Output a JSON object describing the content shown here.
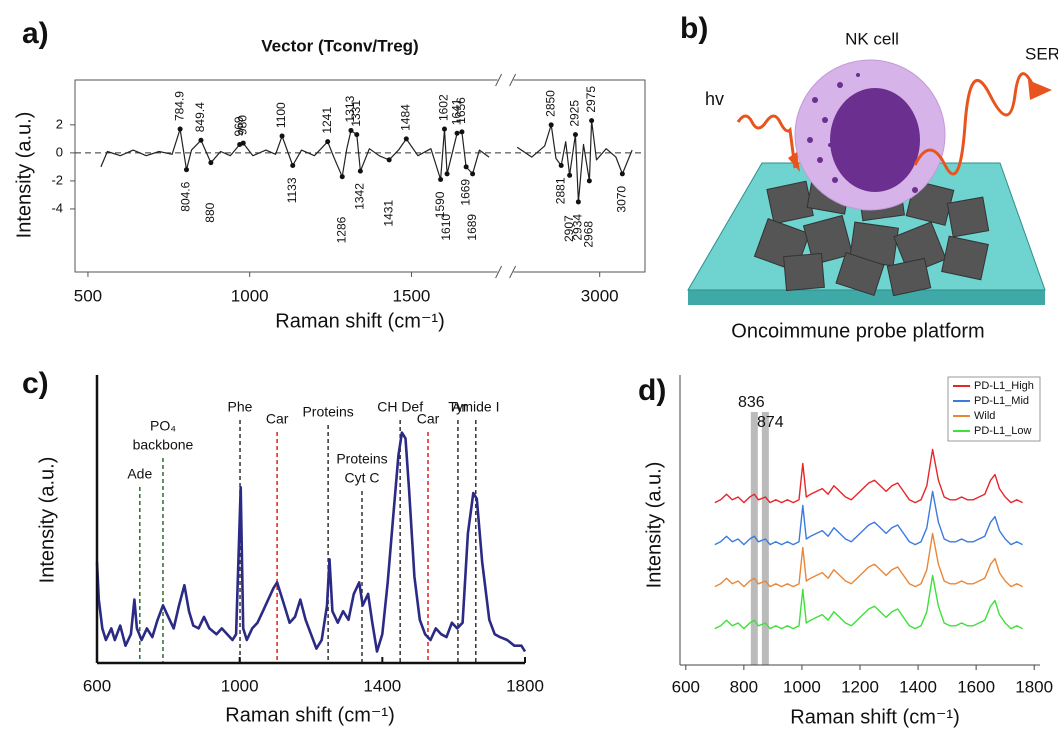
{
  "chart_data": [
    {
      "type": "line",
      "panel_label": "a)",
      "title": "Vector (Tconv/Treg)",
      "x_label": "Raman shift (cm⁻¹)",
      "y_label": "Intensity (a.u.)",
      "xlim": [
        460,
        3140
      ],
      "axis_break": [
        1760,
        2740
      ],
      "xticks": [
        500,
        1000,
        1500,
        3000
      ],
      "ylim": [
        -8.5,
        5.2
      ],
      "yticks": [
        -4,
        -2,
        0,
        2
      ],
      "reference_line": 0,
      "series": [
        {
          "color": "#222222",
          "x": [
            540,
            560,
            600,
            640,
            680,
            720,
            760,
            784.9,
            804.6,
            820,
            849.4,
            880,
            910,
            940,
            969,
            980,
            1010,
            1050,
            1080,
            1100,
            1133,
            1160,
            1200,
            1241,
            1260,
            1286,
            1300,
            1313,
            1331,
            1342,
            1370,
            1400,
            1431,
            1460,
            1484,
            1520,
            1560,
            1590,
            1602,
            1610,
            1641,
            1656,
            1669,
            1689,
            1710,
            1740,
            2000,
            2745,
            2790,
            2830,
            2850,
            2865,
            2881,
            2895,
            2907,
            2925,
            2934,
            2950,
            2968,
            2975,
            2990,
            3020,
            3050,
            3070,
            3100
          ],
          "values": [
            -1.0,
            0.1,
            -0.2,
            0.2,
            -0.2,
            0.1,
            -0.1,
            1.7,
            -1.2,
            0.2,
            0.9,
            -0.7,
            0.1,
            -0.2,
            0.6,
            0.7,
            -0.2,
            0.2,
            -0.1,
            1.2,
            -0.9,
            0.2,
            -0.2,
            0.8,
            -0.3,
            -1.7,
            0.3,
            1.6,
            1.3,
            -1.3,
            0.3,
            -0.2,
            -0.5,
            0.2,
            1.0,
            -0.2,
            0.3,
            -1.9,
            1.7,
            -1.5,
            1.4,
            1.5,
            -1.0,
            -1.5,
            0.2,
            -0.3,
            null,
            0.4,
            -0.3,
            0.5,
            2.0,
            -0.4,
            -0.9,
            0.8,
            -1.6,
            1.3,
            -3.5,
            0.6,
            -2.0,
            2.3,
            -0.5,
            0.3,
            -0.3,
            -1.5,
            0.2
          ]
        }
      ],
      "peak_labels_top": [
        784.9,
        849.4,
        969,
        980,
        1100,
        1241,
        1313,
        1331,
        1484,
        1602,
        1641,
        1656,
        2850,
        2925,
        2975
      ],
      "peak_labels_bottom": [
        804.6,
        880,
        1133,
        1286,
        1342,
        1431,
        1590,
        1610,
        1669,
        1689,
        2881,
        2907,
        2934,
        2968,
        3070
      ]
    },
    {
      "type": "line",
      "panel_label": "c)",
      "x_label": "Raman shift (cm⁻¹)",
      "y_label": "Intensity (a.u.)",
      "xlim": [
        600,
        1800
      ],
      "xticks": [
        600,
        1000,
        1400,
        1800
      ],
      "ylim": [
        0,
        1
      ],
      "series": [
        {
          "color": "#2b2a85",
          "x": [
            600,
            605,
            615,
            625,
            640,
            650,
            665,
            680,
            695,
            705,
            712,
            725,
            740,
            755,
            770,
            785,
            800,
            815,
            830,
            845,
            858,
            870,
            885,
            900,
            915,
            935,
            950,
            965,
            980,
            990,
            1003,
            1010,
            1020,
            1035,
            1050,
            1065,
            1080,
            1095,
            1105,
            1115,
            1125,
            1140,
            1155,
            1170,
            1185,
            1200,
            1215,
            1230,
            1245,
            1252,
            1260,
            1275,
            1290,
            1305,
            1320,
            1335,
            1345,
            1360,
            1372,
            1385,
            1400,
            1415,
            1430,
            1445,
            1455,
            1465,
            1475,
            1490,
            1505,
            1520,
            1535,
            1550,
            1565,
            1580,
            1595,
            1610,
            1625,
            1640,
            1655,
            1665,
            1680,
            1700,
            1715,
            1730,
            1750,
            1770,
            1790,
            1800
          ],
          "values": [
            0.35,
            0.22,
            0.12,
            0.08,
            0.12,
            0.08,
            0.13,
            0.06,
            0.1,
            0.22,
            0.12,
            0.08,
            0.12,
            0.09,
            0.15,
            0.2,
            0.16,
            0.12,
            0.2,
            0.27,
            0.18,
            0.13,
            0.12,
            0.16,
            0.12,
            0.1,
            0.12,
            0.1,
            0.08,
            0.1,
            0.61,
            0.12,
            0.08,
            0.12,
            0.14,
            0.18,
            0.22,
            0.26,
            0.28,
            0.24,
            0.2,
            0.14,
            0.16,
            0.22,
            0.15,
            0.1,
            0.05,
            0.08,
            0.2,
            0.36,
            0.18,
            0.14,
            0.18,
            0.15,
            0.24,
            0.28,
            0.2,
            0.24,
            0.14,
            0.04,
            0.1,
            0.28,
            0.5,
            0.72,
            0.8,
            0.78,
            0.6,
            0.3,
            0.15,
            0.1,
            0.08,
            0.12,
            0.1,
            0.09,
            0.14,
            0.12,
            0.14,
            0.45,
            0.59,
            0.57,
            0.35,
            0.15,
            0.1,
            0.09,
            0.08,
            0.06,
            0.06,
            0.04
          ]
        }
      ],
      "annotations": [
        {
          "x": 720,
          "text": [
            "Ade"
          ],
          "color": "#2e6b2e"
        },
        {
          "x": 785,
          "text": [
            "PO₄",
            "backbone"
          ],
          "color": "#2e6b2e"
        },
        {
          "x": 1001,
          "text": [
            "Phe"
          ],
          "color": "#333333"
        },
        {
          "x": 1105,
          "text": [
            "Car"
          ],
          "color": "#e02020"
        },
        {
          "x": 1248,
          "text": [
            "Proteins"
          ],
          "color": "#333333"
        },
        {
          "x": 1343,
          "text": [
            "Proteins",
            "Cyt C"
          ],
          "color": "#333333"
        },
        {
          "x": 1450,
          "text": [
            "CH Def"
          ],
          "color": "#333333"
        },
        {
          "x": 1528,
          "text": [
            "Car"
          ],
          "color": "#e02020"
        },
        {
          "x": 1612,
          "text": [
            "Tyr"
          ],
          "color": "#333333"
        },
        {
          "x": 1662,
          "text": [
            "Amide I"
          ],
          "color": "#333333"
        }
      ]
    },
    {
      "type": "line",
      "panel_label": "d)",
      "x_label": "Raman shift (cm⁻¹)",
      "y_label": "Intensity (a.u.)",
      "xlim": [
        580,
        1820
      ],
      "xticks": [
        600,
        800,
        1000,
        1200,
        1400,
        1600,
        1800
      ],
      "ylim": [
        0,
        1
      ],
      "legend": "top-right",
      "highlights": [
        836,
        874
      ],
      "x": [
        700,
        720,
        740,
        760,
        780,
        800,
        820,
        836,
        850,
        874,
        890,
        910,
        930,
        950,
        970,
        990,
        1003,
        1015,
        1030,
        1050,
        1070,
        1090,
        1110,
        1130,
        1150,
        1170,
        1190,
        1210,
        1230,
        1250,
        1270,
        1290,
        1310,
        1330,
        1350,
        1370,
        1390,
        1410,
        1430,
        1450,
        1470,
        1490,
        1510,
        1530,
        1550,
        1570,
        1590,
        1610,
        1630,
        1650,
        1665,
        1680,
        1700,
        1720,
        1740,
        1760
      ],
      "series": [
        {
          "name": "PD-L1_High",
          "color": "#e8262a",
          "values": [
            0.58,
            0.59,
            0.61,
            0.59,
            0.6,
            0.58,
            0.6,
            0.61,
            0.59,
            0.6,
            0.58,
            0.59,
            0.58,
            0.59,
            0.58,
            0.59,
            0.72,
            0.6,
            0.61,
            0.62,
            0.63,
            0.61,
            0.64,
            0.62,
            0.6,
            0.59,
            0.61,
            0.63,
            0.65,
            0.66,
            0.64,
            0.62,
            0.64,
            0.65,
            0.62,
            0.59,
            0.58,
            0.59,
            0.64,
            0.77,
            0.66,
            0.6,
            0.59,
            0.59,
            0.6,
            0.59,
            0.59,
            0.6,
            0.61,
            0.66,
            0.68,
            0.63,
            0.6,
            0.58,
            0.59,
            0.58
          ]
        },
        {
          "name": "PD-L1_Mid",
          "color": "#3b7be0",
          "values": [
            0.43,
            0.44,
            0.46,
            0.44,
            0.45,
            0.43,
            0.45,
            0.46,
            0.44,
            0.45,
            0.43,
            0.44,
            0.43,
            0.44,
            0.43,
            0.44,
            0.57,
            0.45,
            0.46,
            0.47,
            0.48,
            0.46,
            0.49,
            0.47,
            0.45,
            0.44,
            0.46,
            0.48,
            0.5,
            0.51,
            0.49,
            0.47,
            0.49,
            0.5,
            0.47,
            0.44,
            0.43,
            0.44,
            0.49,
            0.62,
            0.51,
            0.45,
            0.44,
            0.44,
            0.45,
            0.44,
            0.44,
            0.45,
            0.46,
            0.51,
            0.53,
            0.48,
            0.45,
            0.43,
            0.44,
            0.43
          ]
        },
        {
          "name": "Wild",
          "color": "#e8873a",
          "values": [
            0.28,
            0.29,
            0.31,
            0.29,
            0.3,
            0.28,
            0.3,
            0.31,
            0.29,
            0.3,
            0.28,
            0.29,
            0.28,
            0.29,
            0.28,
            0.29,
            0.42,
            0.3,
            0.31,
            0.32,
            0.33,
            0.31,
            0.34,
            0.32,
            0.3,
            0.29,
            0.31,
            0.33,
            0.35,
            0.36,
            0.34,
            0.32,
            0.34,
            0.35,
            0.32,
            0.29,
            0.28,
            0.29,
            0.34,
            0.47,
            0.36,
            0.3,
            0.29,
            0.29,
            0.3,
            0.29,
            0.29,
            0.3,
            0.31,
            0.36,
            0.38,
            0.33,
            0.3,
            0.28,
            0.29,
            0.28
          ]
        },
        {
          "name": "PD-L1_Low",
          "color": "#3fe03a",
          "values": [
            0.13,
            0.14,
            0.16,
            0.14,
            0.15,
            0.13,
            0.15,
            0.16,
            0.14,
            0.15,
            0.13,
            0.14,
            0.13,
            0.14,
            0.13,
            0.14,
            0.27,
            0.15,
            0.16,
            0.17,
            0.18,
            0.16,
            0.19,
            0.17,
            0.15,
            0.14,
            0.16,
            0.18,
            0.2,
            0.21,
            0.19,
            0.17,
            0.19,
            0.2,
            0.17,
            0.14,
            0.13,
            0.14,
            0.19,
            0.32,
            0.21,
            0.15,
            0.14,
            0.14,
            0.15,
            0.14,
            0.14,
            0.15,
            0.16,
            0.21,
            0.23,
            0.18,
            0.15,
            0.13,
            0.14,
            0.13
          ]
        }
      ]
    }
  ],
  "diagram": {
    "panel_label": "b)",
    "cell_label": "NK cell",
    "light_label": "hv",
    "signal_label": "SER",
    "platform_label": "Oncoimmune probe platform"
  }
}
